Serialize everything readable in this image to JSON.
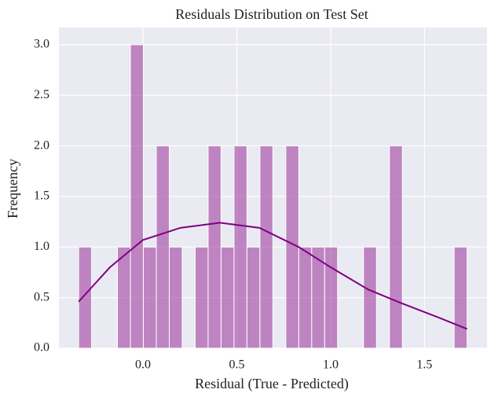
{
  "chart_data": {
    "type": "histogram",
    "title": "Residuals Distribution on Test Set",
    "x_label": "Residual (True - Predicted)",
    "y_label": "Frequency",
    "bins": [
      -0.343,
      -0.274,
      -0.205,
      -0.136,
      -0.067,
      0.002,
      0.071,
      0.14,
      0.209,
      0.278,
      0.347,
      0.416,
      0.485,
      0.554,
      0.623,
      0.692,
      0.761,
      0.83,
      0.899,
      0.968,
      1.037,
      1.106,
      1.175,
      1.244,
      1.313,
      1.382,
      1.451,
      1.52,
      1.589,
      1.658,
      1.727
    ],
    "values": [
      1,
      0,
      0,
      1,
      3,
      1,
      2,
      1,
      0,
      1,
      2,
      1,
      2,
      1,
      2,
      0,
      2,
      1,
      1,
      1,
      0,
      0,
      1,
      0,
      2,
      0,
      0,
      0,
      0,
      1
    ],
    "color": "#a040a0",
    "kde": {
      "color": "#800080",
      "x": [
        -0.343,
        -0.176,
        0.0,
        0.2,
        0.41,
        0.62,
        0.83,
        1.0,
        1.2,
        1.37,
        1.58,
        1.727
      ],
      "values": [
        0.46,
        0.8,
        1.07,
        1.19,
        1.24,
        1.19,
        1.0,
        0.8,
        0.58,
        0.45,
        0.3,
        0.19
      ]
    },
    "xlim": [
      -0.448,
      1.833
    ],
    "ylim": [
      0,
      3.17
    ],
    "xticks": [
      {
        "value": 0,
        "label": "0.0"
      },
      0.5,
      {
        "value": 1,
        "label": "1.0"
      },
      1.5
    ],
    "yticks": [
      {
        "value": 0,
        "label": "0.0"
      },
      0.5,
      {
        "value": 1,
        "label": "1.0"
      },
      1.5,
      {
        "value": 2,
        "label": "2.0"
      },
      2.5,
      {
        "value": 3,
        "label": "3.0"
      }
    ],
    "grid": true
  }
}
